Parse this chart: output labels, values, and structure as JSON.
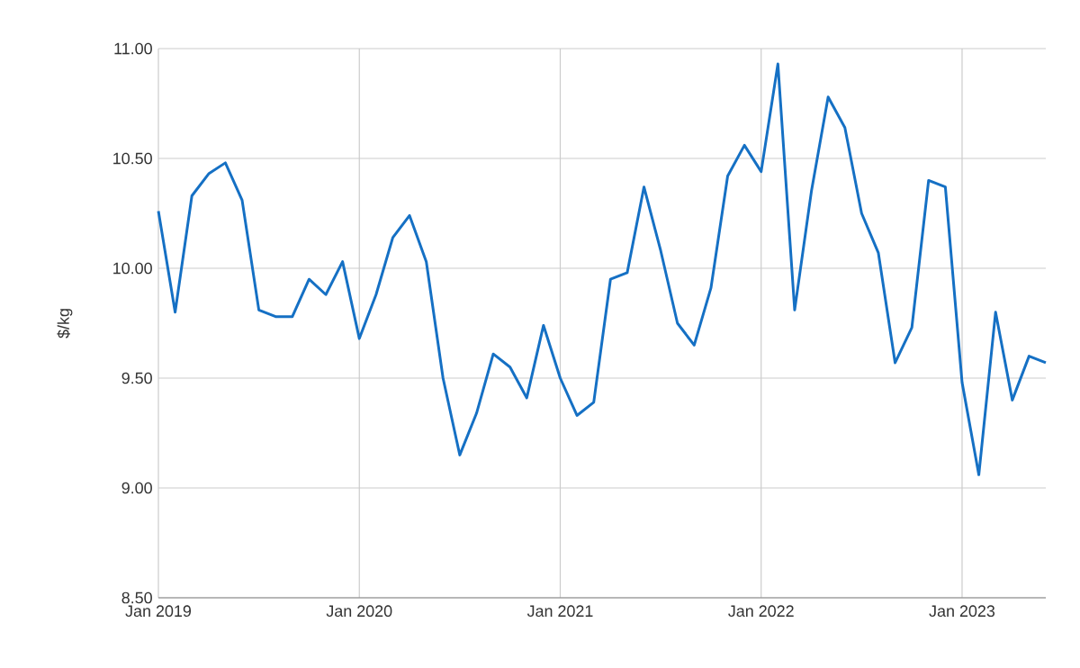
{
  "chart_data": {
    "type": "line",
    "ylabel": "$/kg",
    "x": [
      "2019-01",
      "2019-02",
      "2019-03",
      "2019-04",
      "2019-05",
      "2019-06",
      "2019-07",
      "2019-08",
      "2019-09",
      "2019-10",
      "2019-11",
      "2019-12",
      "2020-01",
      "2020-02",
      "2020-03",
      "2020-04",
      "2020-05",
      "2020-06",
      "2020-07",
      "2020-08",
      "2020-09",
      "2020-10",
      "2020-11",
      "2020-12",
      "2021-01",
      "2021-02",
      "2021-03",
      "2021-04",
      "2021-05",
      "2021-06",
      "2021-07",
      "2021-08",
      "2021-09",
      "2021-10",
      "2021-11",
      "2021-12",
      "2022-01",
      "2022-02",
      "2022-03",
      "2022-04",
      "2022-05",
      "2022-06",
      "2022-07",
      "2022-08",
      "2022-09",
      "2022-10",
      "2022-11",
      "2022-12",
      "2023-01",
      "2023-02",
      "2023-03",
      "2023-04",
      "2023-05",
      "2023-06"
    ],
    "series": [
      {
        "color": "#1570c4",
        "values": [
          10.26,
          9.8,
          10.33,
          10.43,
          10.48,
          10.31,
          9.81,
          9.78,
          9.78,
          9.95,
          9.88,
          10.03,
          9.68,
          9.88,
          10.14,
          10.24,
          10.03,
          9.5,
          9.15,
          9.34,
          9.61,
          9.55,
          9.41,
          9.74,
          9.5,
          9.33,
          9.39,
          9.95,
          9.98,
          10.37,
          10.08,
          9.75,
          9.65,
          9.91,
          10.42,
          10.56,
          10.44,
          10.93,
          9.81,
          10.35,
          10.78,
          10.64,
          10.25,
          10.07,
          9.57,
          9.73,
          10.4,
          10.37,
          9.48,
          9.06,
          9.8,
          9.4,
          9.6,
          9.57
        ]
      }
    ],
    "xlim": [
      "2019-01",
      "2023-06"
    ],
    "xticks": [
      {
        "value": "2019-01",
        "label": "Jan 2019"
      },
      {
        "value": "2020-01",
        "label": "Jan 2020"
      },
      {
        "value": "2021-01",
        "label": "Jan 2021"
      },
      {
        "value": "2022-01",
        "label": "Jan 2022"
      },
      {
        "value": "2023-01",
        "label": "Jan 2023"
      }
    ],
    "ylim": [
      8.5,
      11
    ],
    "yticks": [
      {
        "value": 8.5,
        "label": "8.50"
      },
      {
        "value": 9,
        "label": "9.00"
      },
      {
        "value": 9.5,
        "label": "9.50"
      },
      {
        "value": 10,
        "label": "10.00"
      },
      {
        "value": 10.5,
        "label": "10.50"
      },
      {
        "value": 11,
        "label": "11.00"
      }
    ],
    "grid": true,
    "marker": "none",
    "line_style": "solid"
  }
}
